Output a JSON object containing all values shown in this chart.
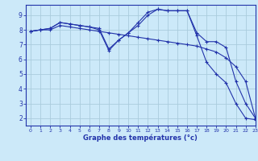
{
  "bg_color": "#cce9f9",
  "grid_color": "#aaccdd",
  "line_color": "#2233aa",
  "xlabel": "Graphe des températures (°c)",
  "xlim": [
    -0.5,
    23
  ],
  "ylim": [
    1.5,
    9.7
  ],
  "xticks": [
    0,
    1,
    2,
    3,
    4,
    5,
    6,
    7,
    8,
    9,
    10,
    11,
    12,
    13,
    14,
    15,
    16,
    17,
    18,
    19,
    20,
    21,
    22,
    23
  ],
  "yticks": [
    2,
    3,
    4,
    5,
    6,
    7,
    8,
    9
  ],
  "lines": [
    {
      "x": [
        0,
        1,
        2,
        3,
        4,
        5,
        6,
        7,
        8,
        9,
        10,
        11,
        12,
        13,
        14,
        15,
        16,
        17,
        18,
        19,
        20,
        21,
        22,
        23
      ],
      "y": [
        7.9,
        8.0,
        8.0,
        8.3,
        8.2,
        8.1,
        8.0,
        7.9,
        7.8,
        7.7,
        7.6,
        7.5,
        7.4,
        7.3,
        7.2,
        7.1,
        7.0,
        6.9,
        6.7,
        6.5,
        6.1,
        5.5,
        4.5,
        2.0
      ]
    },
    {
      "x": [
        0,
        1,
        2,
        3,
        4,
        5,
        6,
        7,
        8,
        9,
        10,
        11,
        12,
        13,
        14,
        15,
        16,
        17,
        18,
        19,
        20,
        21,
        22,
        23
      ],
      "y": [
        7.9,
        8.0,
        8.1,
        8.5,
        8.4,
        8.3,
        8.2,
        8.1,
        6.7,
        7.3,
        7.8,
        8.5,
        9.2,
        9.4,
        9.3,
        9.3,
        9.3,
        7.8,
        7.2,
        7.2,
        6.8,
        4.5,
        3.0,
        2.0
      ]
    },
    {
      "x": [
        0,
        1,
        2,
        3,
        4,
        5,
        6,
        7,
        8,
        9,
        10,
        11,
        12,
        13,
        14,
        15,
        16,
        17,
        18,
        19,
        20,
        21,
        22,
        23
      ],
      "y": [
        7.9,
        8.0,
        8.1,
        8.5,
        8.4,
        8.3,
        8.2,
        8.0,
        6.6,
        7.3,
        7.8,
        8.3,
        9.0,
        9.4,
        9.3,
        9.3,
        9.3,
        7.6,
        5.8,
        5.0,
        4.4,
        3.0,
        2.0,
        1.9
      ]
    }
  ]
}
